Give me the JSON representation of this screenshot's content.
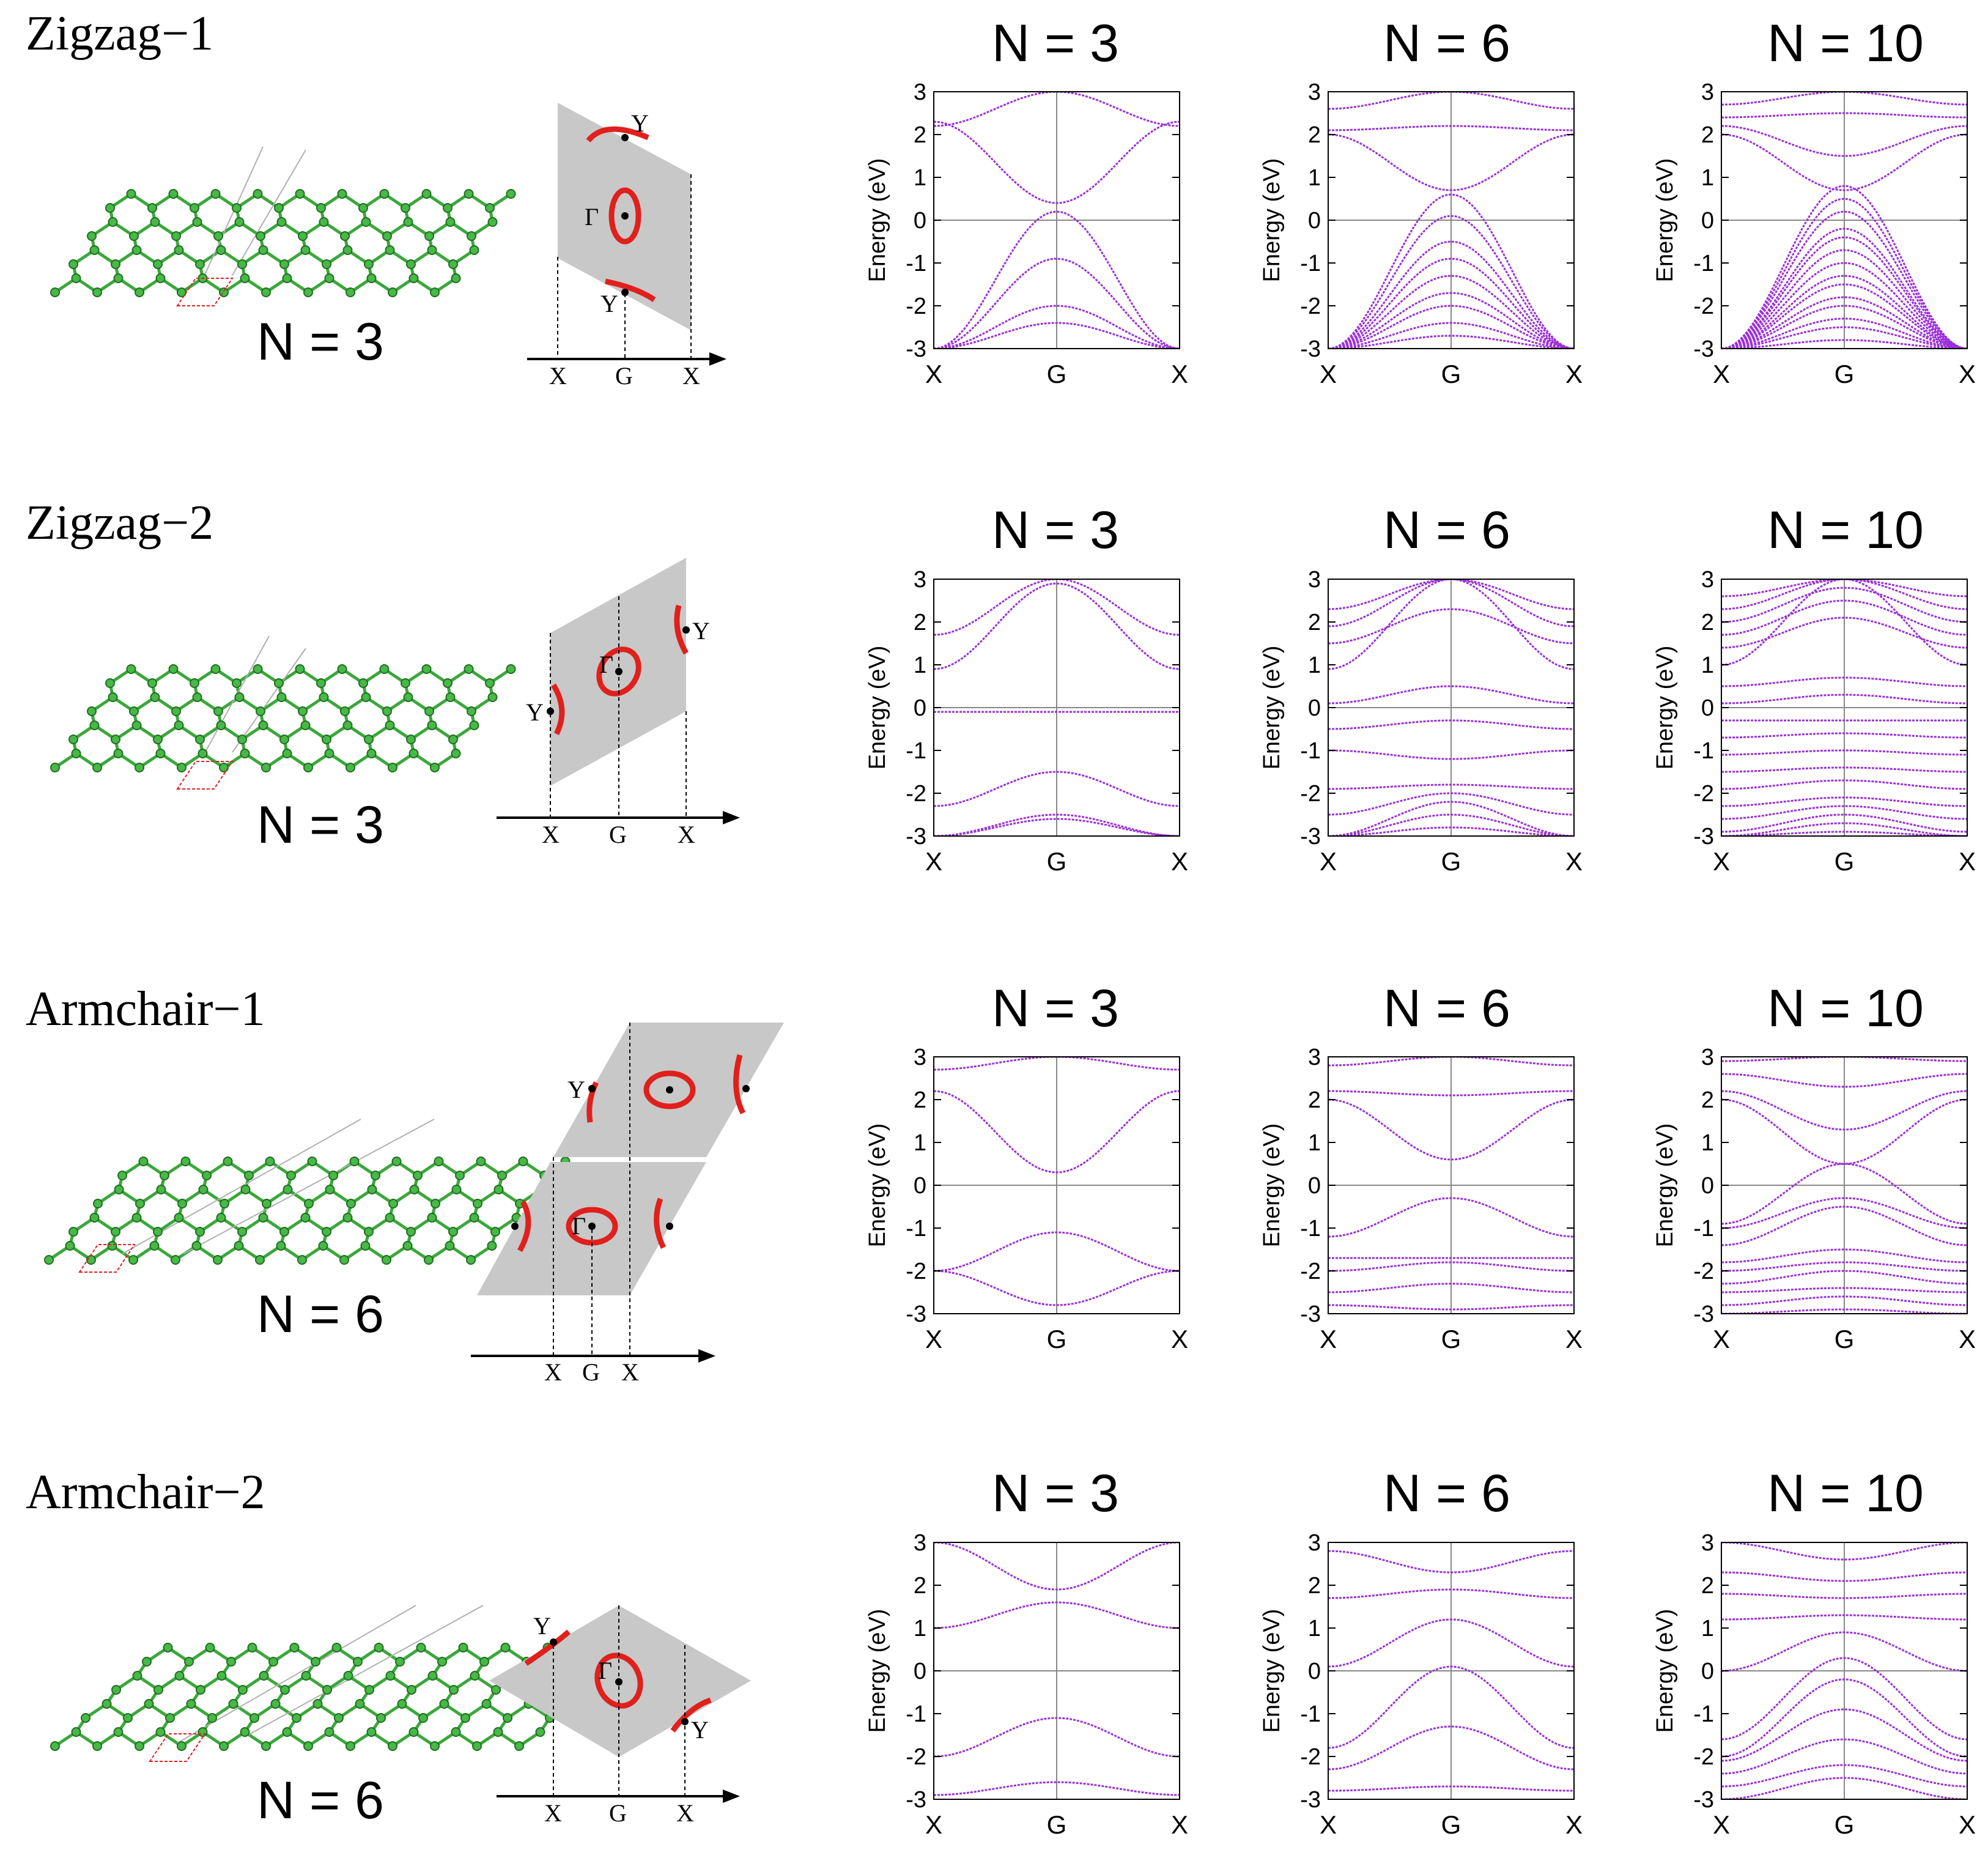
{
  "rows": [
    {
      "title": "Zigzag−1",
      "structure_label": "N = 3",
      "bz_labels": {
        "y_top": "Y",
        "gamma": "Γ",
        "y_bot": "Y",
        "x_left": "X",
        "g": "G",
        "x_right": "X"
      },
      "panels": [
        {
          "title": "N = 3"
        },
        {
          "title": "N = 6"
        },
        {
          "title": "N = 10"
        }
      ]
    },
    {
      "title": "Zigzag−2",
      "structure_label": "N = 3",
      "bz_labels": {
        "y_top": "Y",
        "gamma": "Γ",
        "y_bot": "Y",
        "x_left": "X",
        "g": "G",
        "x_right": "X"
      },
      "panels": [
        {
          "title": "N = 3"
        },
        {
          "title": "N = 6"
        },
        {
          "title": "N = 10"
        }
      ]
    },
    {
      "title": "Armchair−1",
      "structure_label": "N = 6",
      "bz_labels": {
        "y_top": "Y",
        "gamma": "Γ",
        "y_bot": "",
        "x_left": "X",
        "g": "G",
        "x_right": "X"
      },
      "panels": [
        {
          "title": "N = 3"
        },
        {
          "title": "N = 6"
        },
        {
          "title": "N = 10"
        }
      ]
    },
    {
      "title": "Armchair−2",
      "structure_label": "N = 6",
      "bz_labels": {
        "y_top": "Y",
        "gamma": "Γ",
        "y_bot": "Y",
        "x_left": "X",
        "g": "G",
        "x_right": "X"
      },
      "panels": [
        {
          "title": "N = 3"
        },
        {
          "title": "N = 6"
        },
        {
          "title": "N = 10"
        }
      ]
    }
  ],
  "chart_data": {
    "type": "line",
    "description_axes": {
      "ylabel": "Energy (eV)",
      "xticks": [
        "X",
        "G",
        "X"
      ],
      "yticks": [
        "3",
        "2",
        "1",
        "0",
        "-1",
        "-2",
        "-3"
      ],
      "ylim": [
        -3,
        3
      ]
    },
    "line_color": "#9b30d8",
    "panels": [
      [
        {
          "title": "N = 3",
          "bands": [
            [
              2.2,
              3.0
            ],
            [
              2.3,
              0.4
            ],
            [
              -3.0,
              0.2
            ],
            [
              -3.0,
              -0.9
            ],
            [
              -3.0,
              -2.0
            ],
            [
              -3.0,
              -2.4
            ]
          ]
        },
        {
          "title": "N = 6",
          "bands": [
            [
              2.6,
              3.0
            ],
            [
              2.1,
              2.2
            ],
            [
              2.0,
              0.7
            ],
            [
              -3.0,
              0.6
            ],
            [
              -3.0,
              0.1
            ],
            [
              -3.0,
              -0.5
            ],
            [
              -3.0,
              -0.9
            ],
            [
              -3.0,
              -1.3
            ],
            [
              -3.0,
              -1.7
            ],
            [
              -3.0,
              -2.0
            ],
            [
              -3.0,
              -2.4
            ],
            [
              -3.0,
              -2.7
            ]
          ]
        },
        {
          "title": "N = 10",
          "bands": [
            [
              2.7,
              3.0
            ],
            [
              2.4,
              2.5
            ],
            [
              2.2,
              1.5
            ],
            [
              2.0,
              0.7
            ],
            [
              -3.0,
              0.8
            ],
            [
              -3.0,
              0.5
            ],
            [
              -3.0,
              0.2
            ],
            [
              -3.0,
              -0.2
            ],
            [
              -3.0,
              -0.4
            ],
            [
              -3.0,
              -0.7
            ],
            [
              -3.0,
              -1.0
            ],
            [
              -3.0,
              -1.3
            ],
            [
              -3.0,
              -1.5
            ],
            [
              -3.0,
              -1.8
            ],
            [
              -3.0,
              -2.0
            ],
            [
              -3.0,
              -2.3
            ],
            [
              -3.0,
              -2.5
            ],
            [
              -3.0,
              -2.8
            ]
          ]
        }
      ],
      [
        {
          "title": "N = 3",
          "bands": [
            [
              1.7,
              3.0
            ],
            [
              0.9,
              2.9
            ],
            [
              -0.1,
              -0.1
            ],
            [
              -2.3,
              -1.5
            ],
            [
              -3.0,
              -2.5
            ],
            [
              -3.0,
              -2.6
            ]
          ]
        },
        {
          "title": "N = 6",
          "bands": [
            [
              2.3,
              3.0
            ],
            [
              1.9,
              3.0
            ],
            [
              1.5,
              2.3
            ],
            [
              0.9,
              3.0
            ],
            [
              0.1,
              0.5
            ],
            [
              -0.5,
              -0.3
            ],
            [
              -1.0,
              -1.2
            ],
            [
              -1.9,
              -1.8
            ],
            [
              -2.5,
              -2.0
            ],
            [
              -3.0,
              -2.2
            ],
            [
              -3.0,
              -2.5
            ],
            [
              -3.0,
              -2.8
            ]
          ]
        },
        {
          "title": "N = 10",
          "bands": [
            [
              2.6,
              3.0
            ],
            [
              2.3,
              3.0
            ],
            [
              2.0,
              2.8
            ],
            [
              1.7,
              2.5
            ],
            [
              1.4,
              2.1
            ],
            [
              1.0,
              3.0
            ],
            [
              0.5,
              0.7
            ],
            [
              0.1,
              0.3
            ],
            [
              -0.3,
              -0.3
            ],
            [
              -0.7,
              -0.6
            ],
            [
              -1.1,
              -1.0
            ],
            [
              -1.5,
              -1.4
            ],
            [
              -1.9,
              -1.7
            ],
            [
              -2.3,
              -2.1
            ],
            [
              -2.6,
              -2.3
            ],
            [
              -2.9,
              -2.5
            ],
            [
              -3.0,
              -2.7
            ],
            [
              -3.0,
              -2.9
            ]
          ]
        }
      ],
      [
        {
          "title": "N = 3",
          "bands": [
            [
              2.7,
              3.0
            ],
            [
              2.2,
              0.3
            ],
            [
              -2.0,
              -1.1
            ],
            [
              -2.0,
              -2.8
            ]
          ]
        },
        {
          "title": "N = 6",
          "bands": [
            [
              2.8,
              3.0
            ],
            [
              2.2,
              2.1
            ],
            [
              2.0,
              0.6
            ],
            [
              -1.2,
              -0.3
            ],
            [
              -1.7,
              -1.7
            ],
            [
              -2.0,
              -1.8
            ],
            [
              -2.5,
              -2.3
            ],
            [
              -2.8,
              -2.9
            ]
          ]
        },
        {
          "title": "N = 10",
          "bands": [
            [
              2.9,
              3.0
            ],
            [
              2.6,
              2.3
            ],
            [
              2.2,
              1.3
            ],
            [
              2.0,
              0.5
            ],
            [
              -0.9,
              0.5
            ],
            [
              -1.0,
              -0.3
            ],
            [
              -1.4,
              -0.5
            ],
            [
              -1.8,
              -1.5
            ],
            [
              -2.0,
              -1.8
            ],
            [
              -2.3,
              -2.0
            ],
            [
              -2.5,
              -2.4
            ],
            [
              -2.8,
              -2.6
            ],
            [
              -3.0,
              -2.9
            ]
          ]
        }
      ],
      [
        {
          "title": "N = 3",
          "bands": [
            [
              3.0,
              1.9
            ],
            [
              1.0,
              1.6
            ],
            [
              -2.0,
              -1.1
            ],
            [
              -2.9,
              -2.6
            ]
          ]
        },
        {
          "title": "N = 6",
          "bands": [
            [
              2.8,
              2.3
            ],
            [
              1.7,
              1.9
            ],
            [
              0.1,
              1.2
            ],
            [
              -1.8,
              0.1
            ],
            [
              -2.3,
              -1.3
            ],
            [
              -2.8,
              -2.7
            ]
          ]
        },
        {
          "title": "N = 10",
          "bands": [
            [
              3.0,
              2.6
            ],
            [
              2.3,
              2.1
            ],
            [
              1.8,
              1.7
            ],
            [
              1.2,
              1.3
            ],
            [
              0.0,
              0.9
            ],
            [
              -1.6,
              0.3
            ],
            [
              -2.0,
              -0.2
            ],
            [
              -2.1,
              -0.9
            ],
            [
              -2.4,
              -1.6
            ],
            [
              -2.7,
              -2.2
            ],
            [
              -3.0,
              -2.5
            ]
          ]
        }
      ]
    ]
  }
}
